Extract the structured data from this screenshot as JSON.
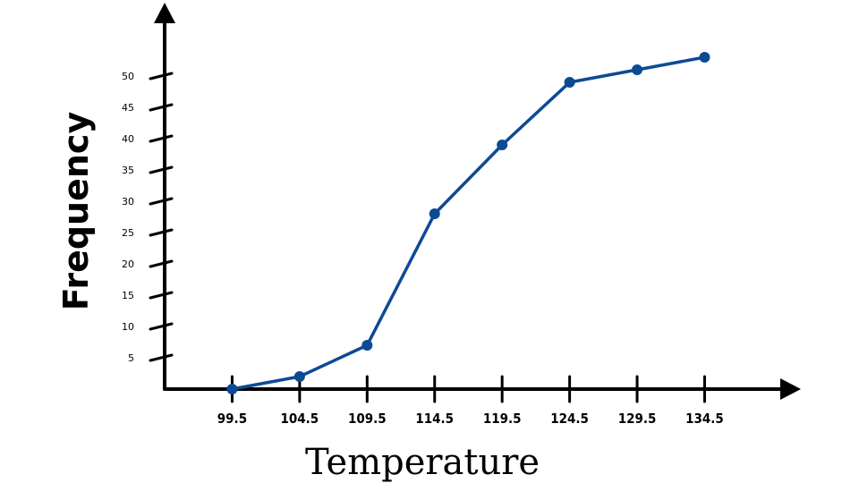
{
  "chart_data": {
    "type": "line",
    "title": "",
    "xlabel": "Temperature",
    "ylabel": "Frequency",
    "x_tick_labels": [
      "99.5",
      "104.5",
      "109.5",
      "114.5",
      "119.5",
      "124.5",
      "129.5",
      "134.5"
    ],
    "y_tick_labels": [
      "5",
      "10",
      "15",
      "20",
      "25",
      "30",
      "35",
      "40",
      "45",
      "50"
    ],
    "y_ticks": [
      5,
      10,
      15,
      20,
      25,
      30,
      35,
      40,
      45,
      50
    ],
    "xlim": [
      94.5,
      140.5
    ],
    "ylim": [
      0,
      59
    ],
    "grid": false,
    "colors": {
      "series": "#0d4a94",
      "axes": "#000000"
    },
    "series": [
      {
        "x": [
          99.5,
          104.5,
          109.5,
          114.5,
          119.5,
          124.5,
          129.5,
          134.5
        ],
        "values": [
          0,
          2,
          7,
          28,
          39,
          49,
          51,
          53
        ]
      }
    ]
  }
}
